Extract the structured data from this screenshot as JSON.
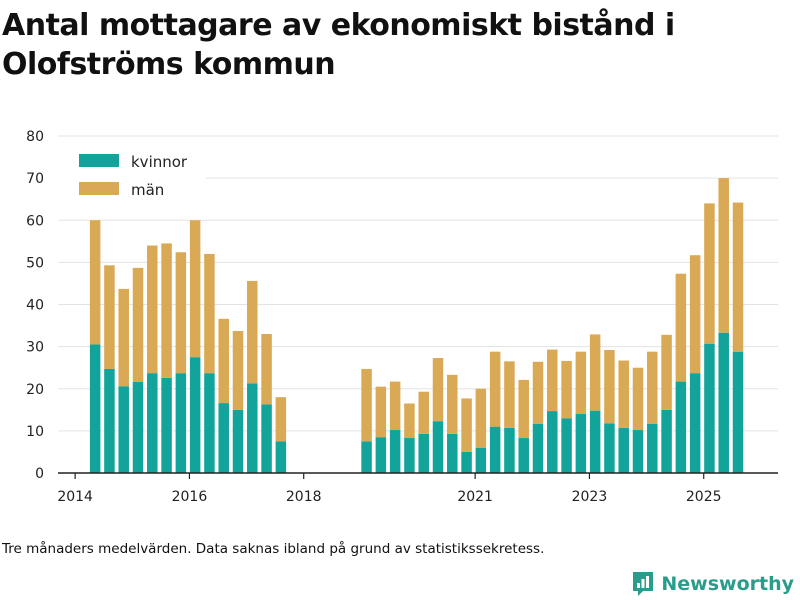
{
  "title": "Antal mottagare av ekonomiskt bistånd i Olofströms kommun",
  "footnote": "Tre månaders medelvärden. Data saknas ibland på grund av statistikssekretess.",
  "brand": {
    "name": "Newsworthy",
    "color": "#2a9c8b"
  },
  "colors": {
    "kvinnor": "#12a39a",
    "man": "#d9a955",
    "grid": "#e3e3e3",
    "axis": "#222222"
  },
  "chart_data": {
    "type": "bar",
    "stacked": true,
    "title": "Antal mottagare av ekonomiskt bistånd i Olofströms kommun",
    "xlabel": "",
    "ylabel": "",
    "ylim": [
      0,
      80
    ],
    "yticks": [
      0,
      10,
      20,
      30,
      40,
      50,
      60,
      70,
      80
    ],
    "xlim": [
      2013.7,
      2026.3
    ],
    "xticks": [
      {
        "value": 2014,
        "label": "2014"
      },
      {
        "value": 2016,
        "label": "2016"
      },
      {
        "value": 2018,
        "label": "2018"
      },
      {
        "value": 2021,
        "label": "2021"
      },
      {
        "value": 2023,
        "label": "2023"
      },
      {
        "value": 2025,
        "label": "2025"
      }
    ],
    "legend": "top-left",
    "x": [
      2014.35,
      2014.6,
      2014.85,
      2015.1,
      2015.35,
      2015.6,
      2015.85,
      2016.1,
      2016.35,
      2016.6,
      2016.85,
      2017.1,
      2017.35,
      2017.6,
      2019.1,
      2019.35,
      2019.6,
      2019.85,
      2020.1,
      2020.35,
      2020.6,
      2020.85,
      2021.1,
      2021.35,
      2021.6,
      2021.85,
      2022.1,
      2022.35,
      2022.6,
      2022.85,
      2023.1,
      2023.35,
      2023.6,
      2023.85,
      2024.1,
      2024.35,
      2024.6,
      2024.85,
      2025.1,
      2025.35,
      2025.6
    ],
    "series": [
      {
        "name": "kvinnor",
        "key": "kvinnor",
        "values": [
          30.5,
          24.7,
          20.6,
          21.6,
          23.7,
          22.6,
          23.7,
          27.5,
          23.7,
          16.6,
          15.0,
          21.3,
          16.3,
          7.5,
          7.5,
          8.5,
          10.2,
          8.3,
          9.3,
          12.3,
          9.3,
          5.0,
          6.0,
          11.0,
          10.7,
          8.3,
          11.7,
          14.7,
          13.0,
          14.0,
          14.8,
          11.8,
          10.7,
          10.2,
          11.7,
          15.0,
          21.7,
          23.7,
          30.7,
          33.3,
          28.8
        ]
      },
      {
        "name": "män",
        "key": "man",
        "values": [
          29.5,
          24.6,
          23.1,
          27.1,
          30.3,
          31.9,
          28.7,
          32.5,
          28.3,
          20.0,
          18.7,
          24.3,
          16.7,
          10.5,
          17.2,
          12.0,
          11.5,
          8.2,
          10.0,
          15.0,
          14.0,
          12.7,
          14.0,
          17.8,
          15.8,
          13.8,
          14.7,
          14.6,
          13.6,
          14.8,
          18.1,
          17.4,
          16.0,
          14.8,
          17.1,
          17.8,
          25.6,
          28.0,
          33.3,
          36.7,
          35.4
        ]
      }
    ]
  }
}
